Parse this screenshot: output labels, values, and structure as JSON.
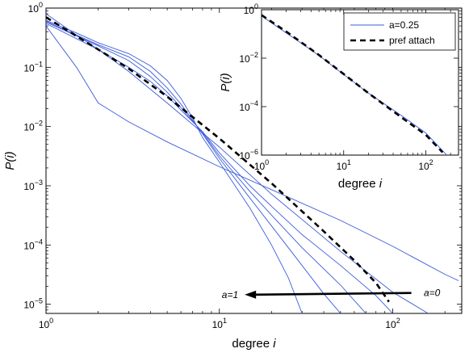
{
  "chart_data": [
    {
      "type": "line",
      "xscale": "log",
      "yscale": "log",
      "xlim": [
        1,
        250
      ],
      "ylim": [
        7e-06,
        1
      ],
      "xticks": [
        1,
        10,
        100
      ],
      "xtick_labels": [
        {
          "base": "10",
          "exp": "0"
        },
        {
          "base": "10",
          "exp": "1"
        },
        {
          "base": "10",
          "exp": "2"
        }
      ],
      "yticks": [
        1e-05,
        0.0001,
        0.001,
        0.01,
        0.1,
        1
      ],
      "ytick_labels": [
        {
          "base": "10",
          "exp": "−5"
        },
        {
          "base": "10",
          "exp": "−4"
        },
        {
          "base": "10",
          "exp": "−3"
        },
        {
          "base": "10",
          "exp": "−2"
        },
        {
          "base": "10",
          "exp": "−1"
        },
        {
          "base": "10",
          "exp": "0"
        }
      ],
      "xlabel": {
        "text": "degree ",
        "italic": "i"
      },
      "ylabel": "P(i)",
      "grid": false,
      "series": [
        {
          "color": "#3b5bdb",
          "style": "solid",
          "points": [
            [
              1,
              0.62
            ],
            [
              1.5,
              0.38
            ],
            [
              2,
              0.26
            ],
            [
              3,
              0.17
            ],
            [
              4,
              0.106
            ],
            [
              5,
              0.06
            ],
            [
              6,
              0.03
            ],
            [
              7,
              0.014
            ],
            [
              8,
              0.0065
            ],
            [
              10,
              0.0025
            ],
            [
              15,
              0.00042
            ],
            [
              20,
              0.0001
            ],
            [
              25,
              2.8e-05
            ],
            [
              30,
              7e-06
            ]
          ]
        },
        {
          "color": "#3b5bdb",
          "style": "solid",
          "points": [
            [
              1,
              0.6
            ],
            [
              2,
              0.24
            ],
            [
              3,
              0.15
            ],
            [
              4,
              0.085
            ],
            [
              5,
              0.045
            ],
            [
              6,
              0.024
            ],
            [
              8,
              0.0075
            ],
            [
              10,
              0.0029
            ],
            [
              15,
              0.00062
            ],
            [
              20,
              0.00021
            ],
            [
              30,
              4.5e-05
            ],
            [
              40,
              1.5e-05
            ],
            [
              50,
              7e-06
            ]
          ]
        },
        {
          "color": "#3b5bdb",
          "style": "solid",
          "points": [
            [
              1,
              0.58
            ],
            [
              2,
              0.23
            ],
            [
              3,
              0.13
            ],
            [
              4,
              0.07
            ],
            [
              5,
              0.038
            ],
            [
              6,
              0.021
            ],
            [
              8,
              0.0078
            ],
            [
              10,
              0.0032
            ],
            [
              15,
              0.0008
            ],
            [
              20,
              0.00032
            ],
            [
              30,
              9e-05
            ],
            [
              50,
              2.1e-05
            ],
            [
              70,
              7e-06
            ]
          ]
        },
        {
          "color": "#3b5bdb",
          "style": "solid",
          "points": [
            [
              1,
              0.55
            ],
            [
              2,
              0.2
            ],
            [
              3,
              0.1
            ],
            [
              4,
              0.058
            ],
            [
              5,
              0.033
            ],
            [
              6,
              0.019
            ],
            [
              8,
              0.0082
            ],
            [
              10,
              0.0036
            ],
            [
              15,
              0.001
            ],
            [
              20,
              0.00045
            ],
            [
              30,
              0.00015
            ],
            [
              50,
              4.5e-05
            ],
            [
              80,
              1.4e-05
            ],
            [
              100,
              7e-06
            ]
          ]
        },
        {
          "color": "#3b5bdb",
          "style": "solid",
          "points": [
            [
              1,
              0.5
            ],
            [
              1.5,
              0.1
            ],
            [
              2,
              0.025
            ],
            [
              3,
              0.012
            ],
            [
              5,
              0.0055
            ],
            [
              10,
              0.0021
            ],
            [
              20,
              0.00086
            ],
            [
              50,
              0.00026
            ],
            [
              100,
              9.5e-05
            ],
            [
              200,
              3.2e-05
            ],
            [
              240,
              2.5e-05
            ]
          ]
        },
        {
          "color": "#3b5bdb",
          "style": "solid",
          "points": [
            [
              1,
              0.8
            ],
            [
              1.5,
              0.35
            ],
            [
              2,
              0.2
            ],
            [
              3,
              0.085
            ],
            [
              5,
              0.025
            ],
            [
              10,
              0.0045
            ],
            [
              20,
              0.00072
            ],
            [
              50,
              7.8e-05
            ],
            [
              100,
              1.6e-05
            ],
            [
              160,
              7e-06
            ]
          ]
        },
        {
          "color": "#000000",
          "style": "dashed",
          "points": [
            [
              1,
              0.7
            ],
            [
              2,
              0.2
            ],
            [
              3,
              0.095
            ],
            [
              5,
              0.032
            ],
            [
              10,
              0.0063
            ],
            [
              20,
              0.0011
            ],
            [
              40,
              0.00017
            ],
            [
              60,
              5.5e-05
            ],
            [
              80,
              2.3e-05
            ],
            [
              95,
              1.1e-05
            ]
          ]
        }
      ],
      "annotations": [
        {
          "label": "a=1",
          "x": 14,
          "y": 1.45e-05
        },
        {
          "label": "a=0",
          "x": 130,
          "y": 1.55e-05
        }
      ],
      "arrow": {
        "from": [
          128,
          1.55e-05
        ],
        "to": [
          14,
          1.45e-05
        ]
      }
    },
    {
      "type": "line",
      "xscale": "log",
      "yscale": "log",
      "xlim": [
        1,
        250
      ],
      "ylim": [
        1e-06,
        1
      ],
      "xticks": [
        1,
        10,
        100
      ],
      "xtick_labels": [
        {
          "base": "10",
          "exp": "0"
        },
        {
          "base": "10",
          "exp": "1"
        },
        {
          "base": "10",
          "exp": "2"
        }
      ],
      "yticks": [
        1e-06,
        0.0001,
        0.01,
        1
      ],
      "ytick_labels": [
        {
          "base": "10",
          "exp": "−6"
        },
        {
          "base": "10",
          "exp": "−4"
        },
        {
          "base": "10",
          "exp": "−2"
        },
        {
          "base": "10",
          "exp": "0"
        }
      ],
      "xlabel": {
        "text": "degree ",
        "italic": "i"
      },
      "ylabel": "P(i)",
      "grid": false,
      "legend": {
        "placement": "top-right"
      },
      "series": [
        {
          "name": "a=0.25",
          "color": "#3b5bdb",
          "style": "solid",
          "points": [
            [
              1,
              0.55
            ],
            [
              2,
              0.11
            ],
            [
              5,
              0.013
            ],
            [
              10,
              0.0021
            ],
            [
              20,
              0.00036
            ],
            [
              50,
              4.4e-05
            ],
            [
              100,
              8.2e-06
            ],
            [
              180,
              1e-06
            ]
          ]
        },
        {
          "name": "pref attach",
          "color": "#000000",
          "style": "dashed",
          "points": [
            [
              1,
              0.6
            ],
            [
              2,
              0.125
            ],
            [
              5,
              0.0135
            ],
            [
              10,
              0.0022
            ],
            [
              20,
              0.00036
            ],
            [
              50,
              3.7e-05
            ],
            [
              100,
              6.8e-06
            ],
            [
              160,
              1.3e-06
            ]
          ]
        }
      ]
    }
  ]
}
